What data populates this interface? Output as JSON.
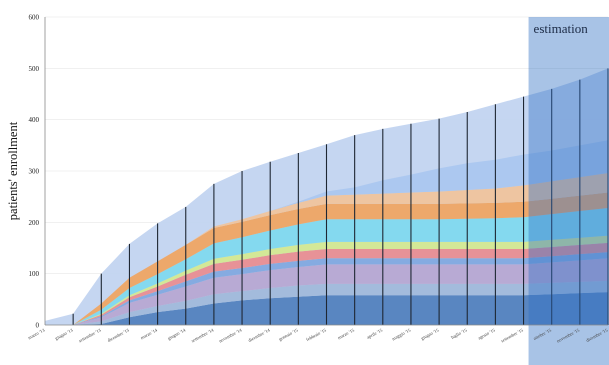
{
  "chart_data": {
    "type": "area",
    "title": "",
    "xlabel": "",
    "ylabel": "patients' enrollment",
    "ylim": [
      0,
      600
    ],
    "yticks": [
      0,
      100,
      200,
      300,
      400,
      500,
      600
    ],
    "estimation_label": "estimation",
    "categories": [
      "marzo '13",
      "giugno '13",
      "settembre '13",
      "dicembre '13",
      "marzo '14",
      "giugno '14",
      "settembre '14",
      "novembre '14",
      "dicembre '14",
      "gennaio '15",
      "febbraio '15",
      "marzo '15",
      "aprile '15",
      "maggio '15",
      "giugno '15",
      "luglio '15",
      "agosto '15",
      "settembre '15",
      "ottobre '15",
      "novembre '15",
      "dicembre '15"
    ],
    "estimation_start_index": 17,
    "series": [
      {
        "color": "#4f7fbd",
        "values": [
          0,
          0,
          2,
          15,
          25,
          32,
          42,
          48,
          52,
          55,
          58,
          58,
          58,
          58,
          58,
          58,
          58,
          58,
          60,
          62,
          64
        ]
      },
      {
        "color": "#9fb9da",
        "values": [
          0,
          0,
          5,
          10,
          12,
          15,
          18,
          18,
          20,
          22,
          22,
          22,
          22,
          22,
          22,
          22,
          22,
          22,
          22,
          22,
          22
        ]
      },
      {
        "color": "#b6a6d1",
        "values": [
          0,
          0,
          8,
          18,
          22,
          28,
          32,
          33,
          35,
          36,
          38,
          38,
          38,
          38,
          38,
          38,
          38,
          38,
          40,
          42,
          44
        ]
      },
      {
        "color": "#7fa7e0",
        "values": [
          0,
          0,
          2,
          5,
          7,
          10,
          12,
          12,
          12,
          12,
          12,
          12,
          12,
          12,
          12,
          12,
          12,
          12,
          12,
          12,
          12
        ]
      },
      {
        "color": "#e98c8f",
        "values": [
          0,
          0,
          3,
          6,
          9,
          13,
          15,
          16,
          17,
          18,
          18,
          18,
          18,
          18,
          18,
          18,
          18,
          18,
          18,
          18,
          18
        ]
      },
      {
        "color": "#d4e98f",
        "values": [
          0,
          0,
          2,
          4,
          6,
          8,
          10,
          11,
          12,
          13,
          14,
          14,
          14,
          14,
          14,
          14,
          14,
          14,
          14,
          14,
          14
        ]
      },
      {
        "color": "#7ed9ef",
        "values": [
          0,
          0,
          8,
          14,
          18,
          22,
          30,
          33,
          36,
          40,
          44,
          44,
          44,
          44,
          44,
          45,
          46,
          48,
          50,
          52,
          54
        ]
      },
      {
        "color": "#f0a45f",
        "values": [
          0,
          0,
          12,
          20,
          25,
          28,
          30,
          30,
          30,
          30,
          30,
          30,
          30,
          30,
          30,
          30,
          30,
          30,
          30,
          30,
          30
        ]
      },
      {
        "color": "#f1c39a",
        "values": [
          0,
          0,
          0,
          0,
          0,
          0,
          3,
          5,
          8,
          12,
          16,
          18,
          20,
          22,
          24,
          26,
          28,
          32,
          34,
          36,
          38
        ]
      },
      {
        "color": "#a9c7f0",
        "values": [
          0,
          0,
          0,
          0,
          0,
          0,
          0,
          0,
          0,
          2,
          8,
          14,
          26,
          35,
          45,
          52,
          56,
          60,
          60,
          62,
          64
        ]
      }
    ],
    "total_series": {
      "color": "#c2d4f0",
      "values": [
        8,
        22,
        100,
        158,
        198,
        230,
        275,
        300,
        318,
        335,
        352,
        370,
        382,
        392,
        402,
        415,
        430,
        445,
        460,
        478,
        500
      ]
    }
  }
}
